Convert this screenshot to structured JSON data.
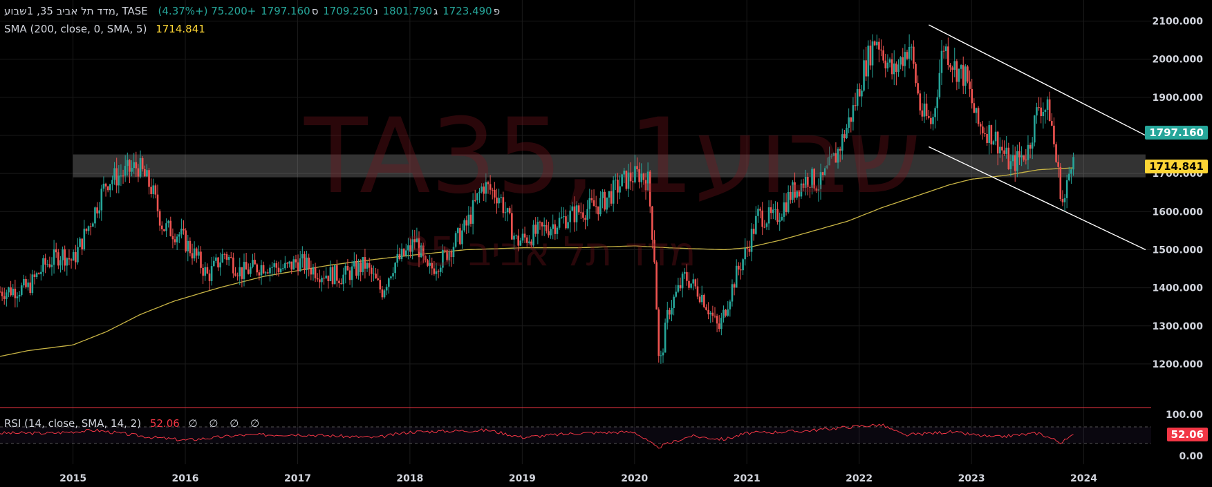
{
  "header": {
    "symbol_line": "מדד תל אביב 35, 1שבוע, TASE",
    "open_label": "פ",
    "open_value": "1723.490",
    "high_label": "ג",
    "high_value": "1801.790",
    "low_label": "נ",
    "low_value": "1709.250",
    "close_label": "ס",
    "close_value": "1797.160",
    "change": "+75.200 (+4.37%)",
    "sma_label": "SMA (200, close, 0, SMA, 5)",
    "sma_value": "1714.841",
    "rsi_label": "RSI (14, close, SMA, 14, 2)",
    "rsi_value": "52.06",
    "rsi_extra": "∅ ∅ ∅ ∅"
  },
  "watermark": {
    "ticker": "TA35, 1שבוע",
    "name": "מדד תל אביב 35"
  },
  "price_tags": {
    "last": "1797.160",
    "sma": "1714.841",
    "rsi": "52.06"
  },
  "colors": {
    "up": "#26a69a",
    "down": "#ef5350",
    "sma": "#c9b545",
    "rsi": "#f23645",
    "last_tag": "#26a69a",
    "sma_tag": "#fcd535"
  },
  "chart_data": {
    "type": "candlestick",
    "timeframe": "weekly",
    "y_ticks": [
      "2100.000",
      "2000.000",
      "1900.000",
      "1800.000",
      "1700.000",
      "1600.000",
      "1500.000",
      "1400.000",
      "1300.000",
      "1200.000"
    ],
    "ylim": [
      1140,
      2130
    ],
    "x_ticks": [
      "2015",
      "2016",
      "2017",
      "2018",
      "2019",
      "2020",
      "2021",
      "2022",
      "2023",
      "2024"
    ],
    "xlim": [
      2014.35,
      2024.6
    ],
    "price_anchors": [
      [
        2014.35,
        1390
      ],
      [
        2014.6,
        1400
      ],
      [
        2014.75,
        1460
      ],
      [
        2014.9,
        1490
      ],
      [
        2015.0,
        1470
      ],
      [
        2015.15,
        1570
      ],
      [
        2015.3,
        1680
      ],
      [
        2015.45,
        1700
      ],
      [
        2015.58,
        1720
      ],
      [
        2015.7,
        1660
      ],
      [
        2015.8,
        1560
      ],
      [
        2015.95,
        1540
      ],
      [
        2016.1,
        1480
      ],
      [
        2016.2,
        1430
      ],
      [
        2016.35,
        1490
      ],
      [
        2016.5,
        1440
      ],
      [
        2016.7,
        1460
      ],
      [
        2016.9,
        1450
      ],
      [
        2017.0,
        1470
      ],
      [
        2017.2,
        1440
      ],
      [
        2017.4,
        1430
      ],
      [
        2017.6,
        1460
      ],
      [
        2017.75,
        1390
      ],
      [
        2017.85,
        1460
      ],
      [
        2018.0,
        1500
      ],
      [
        2018.05,
        1530
      ],
      [
        2018.15,
        1440
      ],
      [
        2018.3,
        1480
      ],
      [
        2018.5,
        1560
      ],
      [
        2018.65,
        1670
      ],
      [
        2018.8,
        1640
      ],
      [
        2018.95,
        1520
      ],
      [
        2019.1,
        1540
      ],
      [
        2019.3,
        1570
      ],
      [
        2019.5,
        1600
      ],
      [
        2019.7,
        1620
      ],
      [
        2019.9,
        1680
      ],
      [
        2020.05,
        1700
      ],
      [
        2020.12,
        1680
      ],
      [
        2020.18,
        1470
      ],
      [
        2020.22,
        1180
      ],
      [
        2020.3,
        1340
      ],
      [
        2020.45,
        1430
      ],
      [
        2020.6,
        1380
      ],
      [
        2020.75,
        1290
      ],
      [
        2020.9,
        1430
      ],
      [
        2021.0,
        1500
      ],
      [
        2021.1,
        1590
      ],
      [
        2021.25,
        1580
      ],
      [
        2021.4,
        1650
      ],
      [
        2021.55,
        1690
      ],
      [
        2021.65,
        1670
      ],
      [
        2021.8,
        1750
      ],
      [
        2021.95,
        1870
      ],
      [
        2022.05,
        1980
      ],
      [
        2022.15,
        2060
      ],
      [
        2022.3,
        1960
      ],
      [
        2022.45,
        2040
      ],
      [
        2022.55,
        1860
      ],
      [
        2022.65,
        1830
      ],
      [
        2022.75,
        2040
      ],
      [
        2022.85,
        1980
      ],
      [
        2022.95,
        1950
      ],
      [
        2023.05,
        1830
      ],
      [
        2023.2,
        1800
      ],
      [
        2023.35,
        1720
      ],
      [
        2023.5,
        1760
      ],
      [
        2023.6,
        1880
      ],
      [
        2023.7,
        1860
      ],
      [
        2023.75,
        1740
      ],
      [
        2023.82,
        1610
      ],
      [
        2023.88,
        1720
      ],
      [
        2023.92,
        1797
      ]
    ],
    "sma_anchors": [
      [
        2014.35,
        1220
      ],
      [
        2014.6,
        1235
      ],
      [
        2015.0,
        1250
      ],
      [
        2015.3,
        1285
      ],
      [
        2015.6,
        1330
      ],
      [
        2015.9,
        1365
      ],
      [
        2016.3,
        1400
      ],
      [
        2016.7,
        1430
      ],
      [
        2017.0,
        1445
      ],
      [
        2017.3,
        1460
      ],
      [
        2017.7,
        1475
      ],
      [
        2018.0,
        1485
      ],
      [
        2018.5,
        1500
      ],
      [
        2019.0,
        1505
      ],
      [
        2019.5,
        1505
      ],
      [
        2020.0,
        1510
      ],
      [
        2020.3,
        1505
      ],
      [
        2020.8,
        1500
      ],
      [
        2021.0,
        1505
      ],
      [
        2021.3,
        1525
      ],
      [
        2021.6,
        1550
      ],
      [
        2021.9,
        1575
      ],
      [
        2022.2,
        1610
      ],
      [
        2022.5,
        1640
      ],
      [
        2022.8,
        1670
      ],
      [
        2023.0,
        1685
      ],
      [
        2023.3,
        1695
      ],
      [
        2023.6,
        1710
      ],
      [
        2023.92,
        1715
      ]
    ],
    "rsi_ylim": [
      0,
      100
    ],
    "rsi_ticks": [
      "100.00",
      "0.00"
    ],
    "rsi_band": [
      30,
      70
    ],
    "rsi_anchors": [
      [
        2014.35,
        55
      ],
      [
        2014.8,
        55
      ],
      [
        2015.2,
        62
      ],
      [
        2015.7,
        45
      ],
      [
        2016.0,
        38
      ],
      [
        2016.5,
        50
      ],
      [
        2017.0,
        52
      ],
      [
        2017.7,
        44
      ],
      [
        2018.0,
        58
      ],
      [
        2018.7,
        62
      ],
      [
        2019.0,
        45
      ],
      [
        2019.5,
        55
      ],
      [
        2020.0,
        58
      ],
      [
        2020.2,
        20
      ],
      [
        2020.5,
        48
      ],
      [
        2020.8,
        40
      ],
      [
        2021.0,
        55
      ],
      [
        2021.5,
        60
      ],
      [
        2022.0,
        72
      ],
      [
        2022.2,
        75
      ],
      [
        2022.4,
        50
      ],
      [
        2022.8,
        58
      ],
      [
        2023.2,
        45
      ],
      [
        2023.6,
        55
      ],
      [
        2023.8,
        32
      ],
      [
        2023.92,
        52
      ]
    ],
    "resistance_band": [
      1690,
      1750
    ],
    "channel_upper": [
      [
        2022.62,
        2090
      ],
      [
        2024.55,
        1800
      ]
    ],
    "channel_lower": [
      [
        2022.62,
        1770
      ],
      [
        2024.55,
        1500
      ]
    ]
  }
}
